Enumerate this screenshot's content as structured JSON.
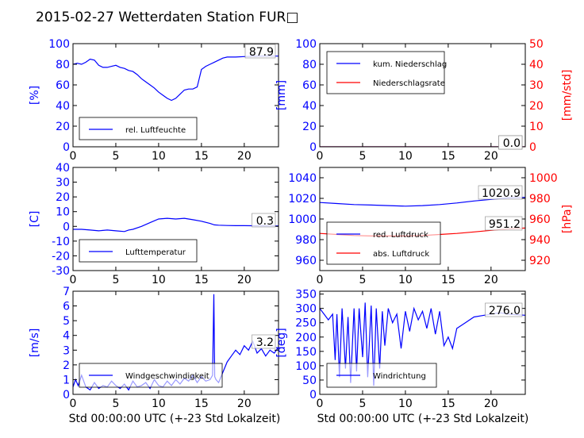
{
  "figure_title": "2015-02-27 Wetterdaten Station FUR□",
  "xlabel": "Std 00:00:00 UTC (+-23 Std Lokalzeit)",
  "colors": {
    "primary": "#0000ff",
    "secondary": "#ff0000",
    "axis": "#000000"
  },
  "chart_data": [
    {
      "type": "line",
      "panel": "humidity",
      "ylabel": "[%]",
      "xlim": [
        0,
        24
      ],
      "ylim": [
        0,
        100
      ],
      "xticks": [
        0,
        5,
        10,
        15,
        20
      ],
      "yticks": [
        0,
        20,
        40,
        60,
        80,
        100
      ],
      "legend": {
        "location": "lower-left"
      },
      "current_value": "87.9",
      "series": [
        {
          "name": "rel. Luftfeuchte",
          "color": "#0000ff",
          "x": [
            0,
            0.5,
            1,
            1.5,
            2,
            2.5,
            3,
            3.5,
            4,
            4.5,
            5,
            5.5,
            6,
            6.5,
            7,
            7.5,
            8,
            8.5,
            9,
            9.5,
            10,
            10.5,
            11,
            11.5,
            12,
            12.5,
            13,
            13.5,
            14,
            14.5,
            15,
            15.5,
            16,
            16.5,
            17,
            17.5,
            18,
            19,
            20,
            21,
            22,
            23,
            24
          ],
          "y": [
            80,
            81,
            80,
            82,
            85,
            84,
            79,
            77,
            77,
            78,
            79,
            77,
            76,
            74,
            73,
            70,
            66,
            63,
            60,
            57,
            53,
            50,
            47,
            45,
            47,
            51,
            55,
            56,
            56,
            58,
            75,
            78,
            80,
            82,
            84,
            86,
            87,
            87,
            87.5,
            87.8,
            87.9,
            87.9,
            87.9
          ]
        }
      ]
    },
    {
      "type": "line",
      "panel": "precipitation",
      "ylabel": "[mm]",
      "ylabel_right": "[mm/std]",
      "xlim": [
        0,
        24
      ],
      "ylim": [
        0,
        100
      ],
      "ylim_right": [
        0,
        50
      ],
      "xticks": [
        0,
        5,
        10,
        15,
        20
      ],
      "yticks": [
        0,
        20,
        40,
        60,
        80,
        100
      ],
      "yticks_right": [
        0,
        10,
        20,
        30,
        40,
        50
      ],
      "legend": {
        "location": "top-left"
      },
      "current_value": "0.0",
      "current_value_right": "0.0",
      "series": [
        {
          "name": "kum. Niederschlag",
          "color": "#0000ff",
          "axis": "left",
          "x": [
            0,
            24
          ],
          "y": [
            0,
            0
          ]
        },
        {
          "name": "Niederschlagsrate",
          "color": "#ff0000",
          "axis": "right",
          "x": [
            0,
            24
          ],
          "y": [
            0,
            0
          ]
        }
      ]
    },
    {
      "type": "line",
      "panel": "temperature",
      "ylabel": "[C]",
      "xlim": [
        0,
        24
      ],
      "ylim": [
        -30,
        40
      ],
      "xticks": [
        0,
        5,
        10,
        15,
        20
      ],
      "yticks": [
        -30,
        -20,
        -10,
        0,
        10,
        20,
        30,
        40
      ],
      "legend": {
        "location": "lower-left"
      },
      "current_value": "0.3",
      "series": [
        {
          "name": "Lufttemperatur",
          "color": "#0000ff",
          "x": [
            0,
            1,
            2,
            3,
            4,
            5,
            6,
            6.5,
            7,
            8,
            9,
            10,
            11,
            12,
            13,
            14,
            15,
            16,
            16.5,
            17,
            18,
            19,
            20,
            21,
            22,
            23,
            24
          ],
          "y": [
            -2,
            -2,
            -2.5,
            -3,
            -2.5,
            -3,
            -3.5,
            -2.5,
            -2,
            0,
            2.5,
            5,
            5.5,
            5,
            5.5,
            4.5,
            3.5,
            2,
            1,
            0.8,
            0.6,
            0.5,
            0.5,
            0.4,
            0.3,
            0.3,
            0.3
          ]
        }
      ]
    },
    {
      "type": "line",
      "panel": "pressure",
      "ylabel": "",
      "ylabel_right": "[hPa]",
      "xlim": [
        0,
        24
      ],
      "ylim": [
        950,
        1050
      ],
      "ylim_right": [
        910,
        1010
      ],
      "xticks": [
        0,
        5,
        10,
        15,
        20
      ],
      "yticks": [
        960,
        980,
        1000,
        1020,
        1040
      ],
      "yticks_right": [
        920,
        940,
        960,
        980,
        1000
      ],
      "legend": {
        "location": "lower-left"
      },
      "current_value": "1020.9",
      "current_value_right": "951.2",
      "series": [
        {
          "name": "red. Luftdruck",
          "color": "#0000ff",
          "axis": "left",
          "x": [
            0,
            2,
            4,
            6,
            8,
            10,
            12,
            14,
            16,
            18,
            20,
            22,
            24
          ],
          "y": [
            1016,
            1015,
            1014,
            1013.5,
            1013,
            1012.5,
            1013,
            1014,
            1015.5,
            1017.5,
            1019,
            1020.5,
            1021
          ]
        },
        {
          "name": "abs. Luftdruck",
          "color": "#ff0000",
          "axis": "right",
          "x": [
            0,
            2,
            4,
            6,
            8,
            10,
            12,
            14,
            16,
            18,
            20,
            22,
            24
          ],
          "y": [
            946,
            945,
            944,
            943.5,
            943.5,
            943.5,
            944,
            945,
            946,
            947.5,
            949,
            950.5,
            951.2
          ]
        }
      ]
    },
    {
      "type": "line",
      "panel": "wind-speed",
      "ylabel": "[m/s]",
      "xlim": [
        0,
        24
      ],
      "ylim": [
        0,
        7
      ],
      "xticks": [
        0,
        5,
        10,
        15,
        20
      ],
      "yticks": [
        0,
        1,
        2,
        3,
        4,
        5,
        6,
        7
      ],
      "legend": {
        "location": "lower-left"
      },
      "current_value": "3.2",
      "series": [
        {
          "name": "Windgeschwindigkeit",
          "color": "#0000ff",
          "x": [
            0,
            0.3,
            0.6,
            1,
            1.5,
            2,
            2.5,
            3,
            3.5,
            4,
            4.5,
            5,
            5.5,
            6,
            6.5,
            7,
            7.5,
            8,
            8.5,
            9,
            9.5,
            10,
            10.5,
            11,
            11.5,
            12,
            12.5,
            13,
            13.5,
            14,
            14.5,
            15,
            15.5,
            16,
            16.3,
            16.45,
            16.55,
            16.7,
            17,
            17.5,
            18,
            18.5,
            19,
            19.5,
            20,
            20.5,
            21,
            21.5,
            22,
            22.5,
            23,
            23.5,
            24
          ],
          "y": [
            0.5,
            1.0,
            0.6,
            1.3,
            0.5,
            0.3,
            0.8,
            0.4,
            0.6,
            0.5,
            0.9,
            0.6,
            0.4,
            0.7,
            0.3,
            0.9,
            0.5,
            0.6,
            0.8,
            0.4,
            1.0,
            0.6,
            0.5,
            0.9,
            0.6,
            1.0,
            0.7,
            1.1,
            0.9,
            1.3,
            0.8,
            1.2,
            0.9,
            1.0,
            1.3,
            6.8,
            1.2,
            1.0,
            0.8,
            1.5,
            2.2,
            2.6,
            3.0,
            2.7,
            3.3,
            3.0,
            3.6,
            2.8,
            3.1,
            2.6,
            3.0,
            2.8,
            3.2
          ]
        }
      ]
    },
    {
      "type": "line",
      "panel": "wind-direction",
      "ylabel": "[deg]",
      "xlim": [
        0,
        24
      ],
      "ylim": [
        0,
        360
      ],
      "xticks": [
        0,
        5,
        10,
        15,
        20
      ],
      "yticks": [
        0,
        50,
        100,
        150,
        200,
        250,
        300,
        350
      ],
      "legend": {
        "location": "lower-left"
      },
      "current_value": "276.0",
      "series": [
        {
          "name": "Windrichtung",
          "color": "#0000ff",
          "x": [
            0,
            0.5,
            1,
            1.5,
            1.8,
            2,
            2.3,
            2.6,
            3,
            3.3,
            3.6,
            4,
            4.3,
            4.6,
            5,
            5.3,
            5.6,
            6,
            6.3,
            6.6,
            7,
            7.3,
            7.6,
            8,
            8.5,
            9,
            9.5,
            10,
            10.5,
            11,
            11.5,
            12,
            12.5,
            13,
            13.5,
            14,
            14.5,
            15,
            15.5,
            16,
            17,
            18,
            19,
            20,
            21,
            22,
            23,
            24
          ],
          "y": [
            300,
            280,
            260,
            280,
            120,
            280,
            60,
            300,
            90,
            270,
            40,
            300,
            80,
            300,
            130,
            320,
            60,
            310,
            30,
            300,
            90,
            290,
            170,
            300,
            250,
            280,
            160,
            290,
            220,
            300,
            260,
            290,
            230,
            300,
            210,
            290,
            170,
            200,
            160,
            230,
            250,
            270,
            275,
            280,
            285,
            280,
            278,
            276
          ]
        }
      ]
    }
  ]
}
